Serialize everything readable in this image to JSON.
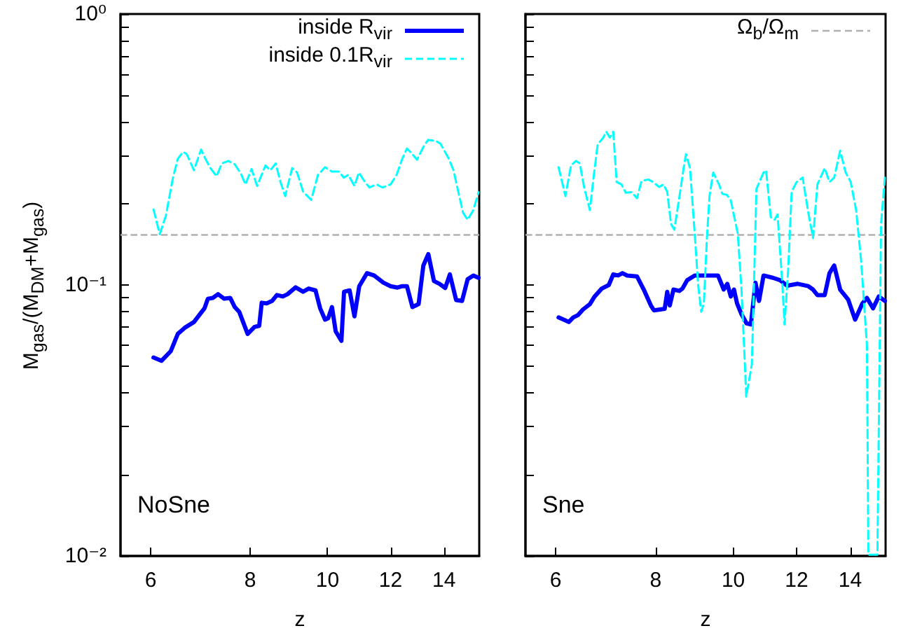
{
  "chart_data": [
    {
      "type": "line",
      "xlabel": "z",
      "ylabel": "M$_{gas}$/(M$_{DM}$+M$_{gas}$)",
      "log": "xy",
      "grid": false,
      "legend": "top right",
      "marker": "none",
      "xlim": [
        5.5,
        15.5
      ],
      "xticks": [
        6,
        8,
        10,
        12,
        14
      ],
      "ylim": [
        0.01,
        1
      ],
      "yticks": [
        {
          "value": 0.01,
          "label": "10⁻²"
        },
        {
          "value": 0.02,
          "label": null
        },
        {
          "value": 0.03,
          "label": null
        },
        {
          "value": 0.04,
          "label": null
        },
        {
          "value": 0.05,
          "label": null
        },
        {
          "value": 0.06,
          "label": null
        },
        {
          "value": 0.07,
          "label": null
        },
        {
          "value": 0.08,
          "label": null
        },
        {
          "value": 0.09,
          "label": null
        },
        {
          "value": 0.1,
          "label": "10⁻¹"
        },
        {
          "value": 0.2,
          "label": null
        },
        {
          "value": 0.3,
          "label": null
        },
        {
          "value": 0.4,
          "label": null
        },
        {
          "value": 0.5,
          "label": null
        },
        {
          "value": 0.6,
          "label": null
        },
        {
          "value": 0.7,
          "label": null
        },
        {
          "value": 0.8,
          "label": null
        },
        {
          "value": 0.9,
          "label": null
        },
        {
          "value": 1,
          "label": "10⁰"
        }
      ],
      "ref_lines": [
        {
          "axis": "y",
          "value": 0.153,
          "color": "#b0b0b0",
          "line_style": "dashed"
        }
      ],
      "annotations": [
        "NoSne"
      ],
      "series": [
        {
          "name": "inside R$_{vir}$",
          "color": "#0000ff",
          "line_style": "solid",
          "x": [
            6.05,
            6.19,
            6.36,
            6.49,
            6.62,
            6.8,
            6.94,
            7.01,
            7.08,
            7.18,
            7.29,
            7.42,
            7.55,
            7.65,
            7.75,
            7.94,
            8.1,
            8.21,
            8.27,
            8.39,
            8.52,
            8.64,
            8.79,
            8.91,
            9.12,
            9.32,
            9.47,
            9.66,
            9.79,
            9.93,
            10.02,
            10.13,
            10.24,
            10.41,
            10.49,
            10.66,
            10.81,
            10.96,
            11.21,
            11.44,
            11.75,
            12.0,
            12.24,
            12.41,
            12.58,
            12.78,
            13.01,
            13.19,
            13.38,
            13.6,
            13.82,
            14.05,
            14.24,
            14.5,
            14.75,
            14.99,
            15.24,
            15.47
          ],
          "values": [
            0.054,
            0.0525,
            0.057,
            0.066,
            0.0695,
            0.073,
            0.079,
            0.082,
            0.089,
            0.0896,
            0.0925,
            0.089,
            0.0896,
            0.0829,
            0.0796,
            0.066,
            0.07,
            0.0707,
            0.086,
            0.0855,
            0.0873,
            0.0918,
            0.0907,
            0.0925,
            0.098,
            0.0944,
            0.097,
            0.0955,
            0.082,
            0.0745,
            0.0754,
            0.0829,
            0.0674,
            0.0622,
            0.0944,
            0.0955,
            0.0766,
            0.099,
            0.1106,
            0.1084,
            0.102,
            0.099,
            0.0978,
            0.099,
            0.099,
            0.0829,
            0.085,
            0.118,
            0.13,
            0.1034,
            0.101,
            0.0975,
            0.1094,
            0.088,
            0.0873,
            0.105,
            0.1084,
            0.1063
          ]
        },
        {
          "name": "inside 0.1R$_{vir}$",
          "color": "#00ffff",
          "line_style": "dashed",
          "x": [
            6.05,
            6.16,
            6.27,
            6.4,
            6.49,
            6.59,
            6.66,
            6.8,
            6.94,
            7.03,
            7.13,
            7.26,
            7.37,
            7.51,
            7.65,
            7.79,
            7.89,
            8.03,
            8.16,
            8.36,
            8.48,
            8.61,
            8.73,
            8.85,
            9.03,
            9.16,
            9.32,
            9.54,
            9.73,
            9.93,
            10.13,
            10.34,
            10.48,
            10.62,
            10.81,
            10.95,
            11.14,
            11.29,
            11.52,
            11.72,
            12.0,
            12.21,
            12.41,
            12.58,
            12.74,
            12.95,
            13.19,
            13.37,
            13.68,
            13.86,
            14.2,
            14.39,
            14.59,
            14.79,
            14.99,
            15.24,
            15.47
          ],
          "values": [
            0.19,
            0.154,
            0.18,
            0.249,
            0.292,
            0.31,
            0.304,
            0.265,
            0.316,
            0.292,
            0.27,
            0.252,
            0.281,
            0.287,
            0.279,
            0.257,
            0.235,
            0.268,
            0.232,
            0.276,
            0.265,
            0.281,
            0.24,
            0.213,
            0.27,
            0.26,
            0.221,
            0.206,
            0.255,
            0.272,
            0.262,
            0.262,
            0.249,
            0.255,
            0.232,
            0.26,
            0.24,
            0.229,
            0.235,
            0.229,
            0.235,
            0.255,
            0.292,
            0.319,
            0.307,
            0.29,
            0.323,
            0.343,
            0.34,
            0.332,
            0.292,
            0.265,
            0.221,
            0.185,
            0.174,
            0.189,
            0.22
          ]
        }
      ]
    },
    {
      "type": "line",
      "xlabel": "z",
      "log": "xy",
      "grid": false,
      "legend": "top right",
      "marker": "none",
      "tick_labels": "x",
      "xlim": [
        5.5,
        15.5
      ],
      "xticks": [
        6,
        8,
        10,
        12,
        14
      ],
      "ylim": [
        0.01,
        1
      ],
      "yticks": [
        {
          "value": 0.01,
          "label": null
        },
        {
          "value": 0.02,
          "label": null
        },
        {
          "value": 0.03,
          "label": null
        },
        {
          "value": 0.04,
          "label": null
        },
        {
          "value": 0.05,
          "label": null
        },
        {
          "value": 0.06,
          "label": null
        },
        {
          "value": 0.07,
          "label": null
        },
        {
          "value": 0.08,
          "label": null
        },
        {
          "value": 0.09,
          "label": null
        },
        {
          "value": 0.1,
          "label": null
        },
        {
          "value": 0.2,
          "label": null
        },
        {
          "value": 0.3,
          "label": null
        },
        {
          "value": 0.4,
          "label": null
        },
        {
          "value": 0.5,
          "label": null
        },
        {
          "value": 0.6,
          "label": null
        },
        {
          "value": 0.7,
          "label": null
        },
        {
          "value": 0.8,
          "label": null
        },
        {
          "value": 0.9,
          "label": null
        },
        {
          "value": 1,
          "label": null
        }
      ],
      "ref_lines": [
        {
          "axis": "y",
          "value": 0.153,
          "label": "Ω$_{b}$/Ω$_{m}$",
          "color": "#b0b0b0",
          "line_style": "dashed"
        }
      ],
      "annotations": [
        "Sne"
      ],
      "series": [
        {
          "color": "#0000ff",
          "line_style": "solid",
          "x": [
            6.05,
            6.14,
            6.23,
            6.31,
            6.4,
            6.49,
            6.62,
            6.71,
            6.85,
            6.99,
            7.08,
            7.18,
            7.27,
            7.37,
            7.58,
            7.73,
            7.89,
            7.96,
            8.1,
            8.21,
            8.27,
            8.33,
            8.42,
            8.56,
            8.64,
            8.76,
            8.95,
            9.09,
            9.34,
            9.57,
            9.73,
            9.83,
            9.93,
            10.02,
            10.11,
            10.24,
            10.39,
            10.52,
            10.66,
            10.77,
            10.91,
            11.21,
            11.44,
            11.68,
            12.04,
            12.41,
            12.58,
            12.74,
            13.01,
            13.19,
            13.37,
            13.6,
            13.92,
            14.2,
            14.5,
            14.69,
            14.95,
            15.2,
            15.47
          ],
          "values": [
            0.0759,
            0.0745,
            0.073,
            0.0759,
            0.0775,
            0.0812,
            0.085,
            0.0907,
            0.097,
            0.1,
            0.1094,
            0.1084,
            0.1106,
            0.1084,
            0.1076,
            0.0962,
            0.084,
            0.0806,
            0.0812,
            0.0817,
            0.0944,
            0.084,
            0.0962,
            0.0951,
            0.097,
            0.1042,
            0.1084,
            0.1084,
            0.1084,
            0.1084,
            0.0962,
            0.101,
            0.0907,
            0.0962,
            0.0855,
            0.078,
            0.0722,
            0.0715,
            0.102,
            0.0873,
            0.1084,
            0.1063,
            0.1042,
            0.0994,
            0.101,
            0.099,
            0.0962,
            0.0918,
            0.0918,
            0.1106,
            0.118,
            0.0962,
            0.0883,
            0.0745,
            0.0855,
            0.0896,
            0.082,
            0.0907,
            0.0873
          ]
        },
        {
          "color": "#00ffff",
          "line_style": "dashed",
          "x": [
            6.05,
            6.17,
            6.27,
            6.36,
            6.43,
            6.51,
            6.62,
            6.69,
            6.77,
            6.88,
            6.94,
            7.01,
            7.08,
            7.15,
            7.25,
            7.34,
            7.47,
            7.58,
            7.68,
            7.83,
            7.94,
            8.08,
            8.18,
            8.27,
            8.36,
            8.44,
            8.56,
            8.67,
            8.73,
            8.83,
            8.95,
            9.04,
            9.12,
            9.19,
            9.27,
            9.34,
            9.44,
            9.6,
            9.69,
            9.82,
            9.93,
            10.13,
            10.24,
            10.34,
            10.38,
            10.55,
            10.69,
            10.91,
            10.99,
            11.14,
            11.26,
            11.36,
            11.52,
            11.59,
            11.71,
            11.83,
            12.0,
            12.21,
            12.41,
            12.58,
            12.74,
            13.01,
            13.19,
            13.37,
            13.6,
            13.82,
            14.02,
            14.24,
            14.45,
            14.69,
            14.75,
            15.14,
            15.3,
            15.47
          ],
          "values": [
            0.272,
            0.213,
            0.276,
            0.287,
            0.281,
            0.23,
            0.189,
            0.249,
            0.33,
            0.35,
            0.368,
            0.35,
            0.368,
            0.24,
            0.235,
            0.219,
            0.22,
            0.209,
            0.242,
            0.245,
            0.24,
            0.23,
            0.235,
            0.221,
            0.168,
            0.16,
            0.209,
            0.27,
            0.304,
            0.27,
            0.155,
            0.1,
            0.0796,
            0.0855,
            0.149,
            0.213,
            0.26,
            0.235,
            0.217,
            0.215,
            0.205,
            0.155,
            0.0962,
            0.051,
            0.0387,
            0.051,
            0.226,
            0.26,
            0.265,
            0.178,
            0.174,
            0.182,
            0.1,
            0.0715,
            0.113,
            0.221,
            0.24,
            0.249,
            0.185,
            0.149,
            0.235,
            0.27,
            0.24,
            0.249,
            0.313,
            0.26,
            0.24,
            0.189,
            0.122,
            0.06,
            0.0101,
            0.0101,
            0.168,
            0.249
          ]
        }
      ]
    }
  ]
}
